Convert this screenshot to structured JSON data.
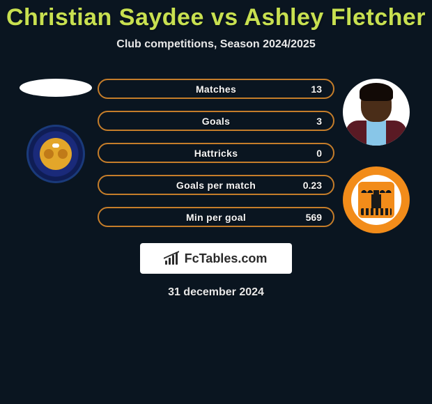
{
  "title": "Christian Saydee vs Ashley Fletcher",
  "subtitle": "Club competitions, Season 2024/2025",
  "date": "31 december 2024",
  "watermark": "FcTables.com",
  "colors": {
    "background": "#0a1520",
    "title": "#c8e050",
    "bar_border": "#c57d2a",
    "text_light": "#f5f5f5"
  },
  "stats": [
    {
      "label": "Matches",
      "value": "13"
    },
    {
      "label": "Goals",
      "value": "3"
    },
    {
      "label": "Hattricks",
      "value": "0"
    },
    {
      "label": "Goals per match",
      "value": "0.23"
    },
    {
      "label": "Min per goal",
      "value": "569"
    }
  ],
  "left": {
    "player_placeholder": true,
    "club_badge": "shrewsbury-style"
  },
  "right": {
    "player": "Ashley Fletcher",
    "club_badge": "blackpool-style"
  }
}
